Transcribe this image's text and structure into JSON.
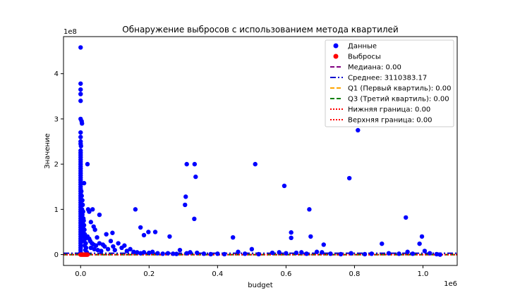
{
  "chart_data": {
    "type": "scatter",
    "title": "Обнаружение выбросов с использованием метода квартилей",
    "xlabel": "budget",
    "ylabel": "Значение",
    "x_offset_text": "1e6",
    "y_offset_text": "1e8",
    "xlim": [
      -50000,
      1100000
    ],
    "ylim": [
      -24000000,
      482000000
    ],
    "x_ticks": [
      0,
      200000,
      400000,
      600000,
      800000,
      1000000
    ],
    "x_tick_labels": [
      "0.0",
      "0.2",
      "0.4",
      "0.6",
      "0.8",
      "1.0"
    ],
    "y_ticks": [
      0,
      100000000,
      200000000,
      300000000,
      400000000
    ],
    "y_tick_labels": [
      "0",
      "1",
      "2",
      "3",
      "4"
    ],
    "grid": false,
    "legend_position": "top-right",
    "legend": [
      {
        "label": "Данные",
        "style": "marker",
        "color": "#0000ff"
      },
      {
        "label": "Выбросы",
        "style": "marker",
        "color": "#ff0000"
      },
      {
        "label": "Медиана: 0.00",
        "style": "dashed",
        "color": "#800080"
      },
      {
        "label": "Среднее: 3110383.17",
        "style": "dashdot",
        "color": "#0000cd"
      },
      {
        "label": "Q1 (Первый квартиль): 0.00",
        "style": "dashed",
        "color": "#ffa500"
      },
      {
        "label": "Q3 (Третий квартиль): 0.00",
        "style": "dashed",
        "color": "#008000"
      },
      {
        "label": "Нижняя граница: 0.00",
        "style": "dotted",
        "color": "#ff0000"
      },
      {
        "label": "Верхняя граница: 0.00",
        "style": "dotted",
        "color": "#ff0000"
      }
    ],
    "hlines": [
      {
        "name": "Медиана: 0.00",
        "y": 0,
        "color": "#800080",
        "style": "dashed"
      },
      {
        "name": "Среднее: 3110383.17",
        "y": 3110383.17,
        "color": "#0000cd",
        "style": "dashdot"
      },
      {
        "name": "Q1 (Первый квартиль): 0.00",
        "y": 0,
        "color": "#ffa500",
        "style": "dashed"
      },
      {
        "name": "Q3 (Третий квартиль): 0.00",
        "y": 0,
        "color": "#008000",
        "style": "dashed"
      },
      {
        "name": "Нижняя граница: 0.00",
        "y": 0,
        "color": "#ff0000",
        "style": "dotted"
      },
      {
        "name": "Верхняя граница: 0.00",
        "y": 0,
        "color": "#ff0000",
        "style": "dotted"
      }
    ],
    "series": [
      {
        "name": "Данные",
        "color": "#0000ff",
        "points": [
          [
            0,
            458000000
          ],
          [
            0,
            378000000
          ],
          [
            0,
            365000000
          ],
          [
            0,
            355000000
          ],
          [
            0,
            340000000
          ],
          [
            0,
            300000000
          ],
          [
            3000,
            295000000
          ],
          [
            4000,
            290000000
          ],
          [
            0,
            270000000
          ],
          [
            0,
            260000000
          ],
          [
            0,
            250000000
          ],
          [
            0,
            245000000
          ],
          [
            1000,
            240000000
          ],
          [
            0,
            230000000
          ],
          [
            0,
            225000000
          ],
          [
            0,
            220000000
          ],
          [
            0,
            215000000
          ],
          [
            0,
            210000000
          ],
          [
            0,
            205000000
          ],
          [
            0,
            200000000
          ],
          [
            0,
            195000000
          ],
          [
            0,
            190000000
          ],
          [
            0,
            185000000
          ],
          [
            0,
            180000000
          ],
          [
            0,
            175000000
          ],
          [
            0,
            170000000
          ],
          [
            0,
            165000000
          ],
          [
            0,
            160000000
          ],
          [
            0,
            155000000
          ],
          [
            10000,
            158000000
          ],
          [
            0,
            150000000
          ],
          [
            0,
            145000000
          ],
          [
            0,
            140000000
          ],
          [
            0,
            135000000
          ],
          [
            0,
            130000000
          ],
          [
            0,
            125000000
          ],
          [
            0,
            120000000
          ],
          [
            0,
            115000000
          ],
          [
            0,
            110000000
          ],
          [
            0,
            105000000
          ],
          [
            0,
            100000000
          ],
          [
            0,
            95000000
          ],
          [
            0,
            90000000
          ],
          [
            0,
            85000000
          ],
          [
            0,
            80000000
          ],
          [
            0,
            75000000
          ],
          [
            0,
            70000000
          ],
          [
            0,
            65000000
          ],
          [
            0,
            60000000
          ],
          [
            0,
            55000000
          ],
          [
            0,
            50000000
          ],
          [
            0,
            45000000
          ],
          [
            0,
            40000000
          ],
          [
            0,
            35000000
          ],
          [
            0,
            30000000
          ],
          [
            0,
            25000000
          ],
          [
            0,
            20000000
          ],
          [
            0,
            15000000
          ],
          [
            0,
            10000000
          ],
          [
            0,
            5000000
          ],
          [
            2000,
            140000000
          ],
          [
            3000,
            130000000
          ],
          [
            5000,
            120000000
          ],
          [
            6000,
            110000000
          ],
          [
            4000,
            100000000
          ],
          [
            7000,
            95000000
          ],
          [
            5000,
            88000000
          ],
          [
            8000,
            80000000
          ],
          [
            9000,
            75000000
          ],
          [
            6000,
            70000000
          ],
          [
            10000,
            65000000
          ],
          [
            7000,
            60000000
          ],
          [
            11000,
            55000000
          ],
          [
            8000,
            50000000
          ],
          [
            12000,
            45000000
          ],
          [
            9000,
            40000000
          ],
          [
            13000,
            35000000
          ],
          [
            10000,
            30000000
          ],
          [
            15000,
            25000000
          ],
          [
            12000,
            20000000
          ],
          [
            16000,
            15000000
          ],
          [
            14000,
            10000000
          ],
          [
            18000,
            5000000
          ],
          [
            20000,
            200000000
          ],
          [
            22000,
            100000000
          ],
          [
            25000,
            95000000
          ],
          [
            30000,
            72000000
          ],
          [
            35000,
            100000000
          ],
          [
            38000,
            62000000
          ],
          [
            42000,
            55000000
          ],
          [
            55000,
            88000000
          ],
          [
            48000,
            38000000
          ],
          [
            75000,
            45000000
          ],
          [
            93000,
            48000000
          ],
          [
            20000,
            40000000
          ],
          [
            25000,
            35000000
          ],
          [
            28000,
            30000000
          ],
          [
            33000,
            25000000
          ],
          [
            38000,
            22000000
          ],
          [
            45000,
            20000000
          ],
          [
            55000,
            25000000
          ],
          [
            65000,
            22000000
          ],
          [
            70000,
            18000000
          ],
          [
            30000,
            15000000
          ],
          [
            40000,
            12000000
          ],
          [
            50000,
            10000000
          ],
          [
            60000,
            8000000
          ],
          [
            80000,
            12000000
          ],
          [
            88000,
            30000000
          ],
          [
            95000,
            18000000
          ],
          [
            100000,
            10000000
          ],
          [
            110000,
            25000000
          ],
          [
            120000,
            15000000
          ],
          [
            128000,
            20000000
          ],
          [
            135000,
            8000000
          ],
          [
            145000,
            12000000
          ],
          [
            155000,
            6000000
          ],
          [
            165000,
            5000000
          ],
          [
            175000,
            3000000
          ],
          [
            185000,
            5000000
          ],
          [
            200000,
            4000000
          ],
          [
            210000,
            6000000
          ],
          [
            225000,
            3000000
          ],
          [
            240000,
            2000000
          ],
          [
            255000,
            3000000
          ],
          [
            270000,
            2000000
          ],
          [
            280000,
            1500000
          ],
          [
            290000,
            10000000
          ],
          [
            160000,
            100000000
          ],
          [
            175000,
            60000000
          ],
          [
            185000,
            43000000
          ],
          [
            198000,
            50000000
          ],
          [
            218000,
            50000000
          ],
          [
            260000,
            40000000
          ],
          [
            305000,
            110000000
          ],
          [
            307000,
            128000000
          ],
          [
            310000,
            200000000
          ],
          [
            333000,
            200000000
          ],
          [
            336000,
            172000000
          ],
          [
            332000,
            79000000
          ],
          [
            310000,
            3000000
          ],
          [
            320000,
            5000000
          ],
          [
            340000,
            4000000
          ],
          [
            360000,
            2000000
          ],
          [
            380000,
            1000000
          ],
          [
            400000,
            2000000
          ],
          [
            420000,
            1000000
          ],
          [
            445000,
            38000000
          ],
          [
            460000,
            6000000
          ],
          [
            480000,
            2000000
          ],
          [
            500000,
            12000000
          ],
          [
            510000,
            200000000
          ],
          [
            520000,
            1000000
          ],
          [
            560000,
            4000000
          ],
          [
            580000,
            5000000
          ],
          [
            595000,
            152000000
          ],
          [
            600000,
            3000000
          ],
          [
            615000,
            49000000
          ],
          [
            615000,
            37000000
          ],
          [
            630000,
            4000000
          ],
          [
            645000,
            5000000
          ],
          [
            660000,
            2000000
          ],
          [
            668000,
            100000000
          ],
          [
            672000,
            40000000
          ],
          [
            690000,
            6000000
          ],
          [
            705000,
            5000000
          ],
          [
            710000,
            22000000
          ],
          [
            730000,
            2000000
          ],
          [
            760000,
            1000000
          ],
          [
            785000,
            169000000
          ],
          [
            790000,
            3000000
          ],
          [
            810000,
            275000000
          ],
          [
            830000,
            1000000
          ],
          [
            850000,
            2000000
          ],
          [
            880000,
            24000000
          ],
          [
            900000,
            3000000
          ],
          [
            930000,
            2000000
          ],
          [
            950000,
            82000000
          ],
          [
            955000,
            6000000
          ],
          [
            970000,
            2000000
          ],
          [
            990000,
            24000000
          ],
          [
            997000,
            40000000
          ],
          [
            1005000,
            8000000
          ],
          [
            1020000,
            3000000
          ],
          [
            1040000,
            1000000
          ],
          [
            1050000,
            0
          ]
        ]
      },
      {
        "name": "Выбросы",
        "color": "#ff0000",
        "points": [
          [
            0,
            0
          ],
          [
            2000,
            0
          ],
          [
            4000,
            0
          ],
          [
            6000,
            0
          ],
          [
            8000,
            0
          ],
          [
            10000,
            0
          ],
          [
            12000,
            0
          ],
          [
            14000,
            0
          ],
          [
            16000,
            0
          ],
          [
            18000,
            0
          ],
          [
            20000,
            0
          ]
        ]
      }
    ]
  }
}
